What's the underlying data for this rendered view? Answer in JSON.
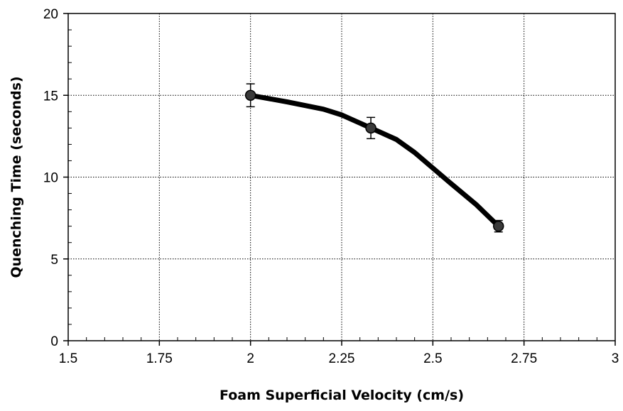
{
  "chart_data": {
    "type": "line",
    "title": "",
    "xlabel": "Foam Superficial Velocity (cm/s)",
    "ylabel": "Quenching Time (seconds)",
    "xlim": [
      1.5,
      3
    ],
    "ylim": [
      0,
      20
    ],
    "x_ticks": [
      1.5,
      1.75,
      2,
      2.25,
      2.5,
      2.75,
      3
    ],
    "x_tick_labels": [
      "1.5",
      "1.75",
      "2",
      "2.25",
      "2.5",
      "2.75",
      "3"
    ],
    "y_ticks": [
      0,
      5,
      10,
      15,
      20
    ],
    "y_tick_labels": [
      "0",
      "5",
      "10",
      "15",
      "20"
    ],
    "grid": true,
    "series": [
      {
        "points": [
          {
            "x": 2.0,
            "y": 15.0,
            "err": 0.7
          },
          {
            "x": 2.33,
            "y": 13.0,
            "err": 0.65
          },
          {
            "x": 2.68,
            "y": 7.0,
            "err": 0.35
          }
        ],
        "curve": [
          [
            2.0,
            15.0
          ],
          [
            2.1,
            14.6
          ],
          [
            2.2,
            14.15
          ],
          [
            2.25,
            13.8
          ],
          [
            2.33,
            13.0
          ],
          [
            2.4,
            12.3
          ],
          [
            2.45,
            11.5
          ],
          [
            2.55,
            9.6
          ],
          [
            2.62,
            8.3
          ],
          [
            2.68,
            7.0
          ]
        ],
        "color": "#000000",
        "marker_color": "#3a3a3a"
      }
    ]
  }
}
